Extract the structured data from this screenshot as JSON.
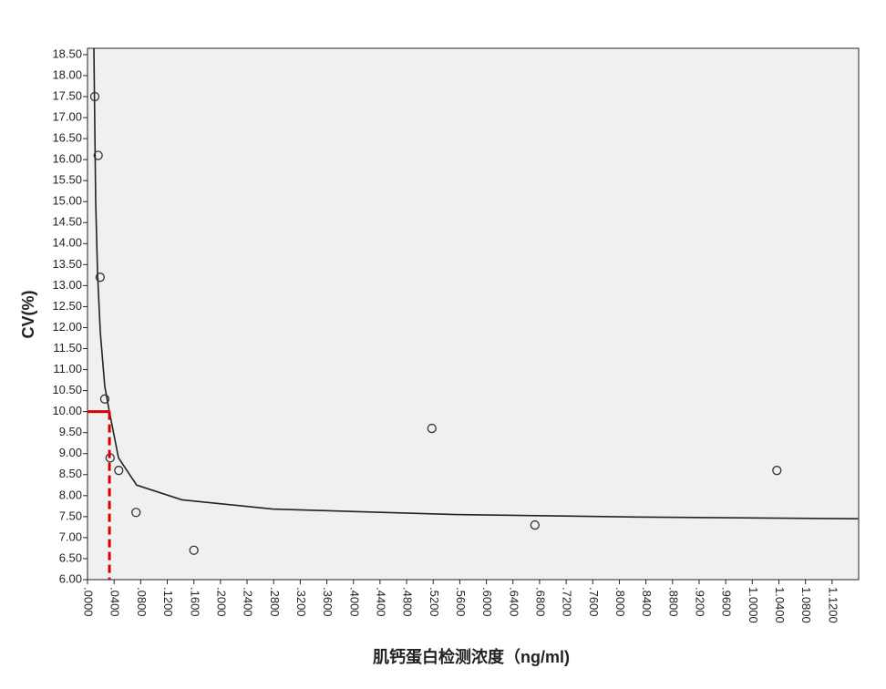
{
  "chart_data": {
    "type": "scatter",
    "x_label": "肌钙蛋白检测浓度（ng/ml)",
    "y_label": "CV(%)",
    "x": [
      0.011,
      0.016,
      0.019,
      0.026,
      0.034,
      0.047,
      0.073,
      0.16,
      0.518,
      0.673,
      1.037
    ],
    "values": [
      17.5,
      16.1,
      13.2,
      10.3,
      8.9,
      8.6,
      7.6,
      6.7,
      9.6,
      7.3,
      8.6
    ],
    "color": "#333333",
    "fit_curve": {
      "color": "#222222",
      "x": [
        0.0096,
        0.0123,
        0.0151,
        0.0192,
        0.026,
        0.0329,
        0.0466,
        0.074,
        0.142,
        0.279,
        0.553,
        0.827,
        1.159
      ],
      "y": [
        18.65,
        15.0,
        13.3,
        11.9,
        10.6,
        10.0,
        8.9,
        8.25,
        7.9,
        7.68,
        7.55,
        7.49,
        7.45
      ]
    },
    "reference": {
      "x": 0.033,
      "y": 10,
      "color": "#d40000"
    },
    "xlim": [
      0,
      1.16
    ],
    "ylim": [
      6,
      18.65
    ],
    "xticks": [
      {
        "value": 0,
        "label": ".0000"
      },
      {
        "value": 0.04,
        "label": ".0400"
      },
      {
        "value": 0.08,
        "label": ".0800"
      },
      {
        "value": 0.12,
        "label": ".1200"
      },
      {
        "value": 0.16,
        "label": ".1600"
      },
      {
        "value": 0.2,
        "label": ".2000"
      },
      {
        "value": 0.24,
        "label": ".2400"
      },
      {
        "value": 0.28,
        "label": ".2800"
      },
      {
        "value": 0.32,
        "label": ".3200"
      },
      {
        "value": 0.36,
        "label": ".3600"
      },
      {
        "value": 0.4,
        "label": ".4000"
      },
      {
        "value": 0.44,
        "label": ".4400"
      },
      {
        "value": 0.48,
        "label": ".4800"
      },
      {
        "value": 0.52,
        "label": ".5200"
      },
      {
        "value": 0.56,
        "label": ".5600"
      },
      {
        "value": 0.6,
        "label": ".6000"
      },
      {
        "value": 0.64,
        "label": ".6400"
      },
      {
        "value": 0.68,
        "label": ".6800"
      },
      {
        "value": 0.72,
        "label": ".7200"
      },
      {
        "value": 0.76,
        "label": ".7600"
      },
      {
        "value": 0.8,
        "label": ".8000"
      },
      {
        "value": 0.84,
        "label": ".8400"
      },
      {
        "value": 0.88,
        "label": ".8800"
      },
      {
        "value": 0.92,
        "label": ".9200"
      },
      {
        "value": 0.96,
        "label": ".9600"
      },
      {
        "value": 1.0,
        "label": "1.0000"
      },
      {
        "value": 1.04,
        "label": "1.0400"
      },
      {
        "value": 1.08,
        "label": "1.0800"
      },
      {
        "value": 1.12,
        "label": "1.1200"
      }
    ],
    "yticks": [
      {
        "value": 6,
        "label": "6.00"
      },
      {
        "value": 6.5,
        "label": "6.50"
      },
      {
        "value": 7,
        "label": "7.00"
      },
      {
        "value": 7.5,
        "label": "7.50"
      },
      {
        "value": 8,
        "label": "8.00"
      },
      {
        "value": 8.5,
        "label": "8.50"
      },
      {
        "value": 9,
        "label": "9.00"
      },
      {
        "value": 9.5,
        "label": "9.50"
      },
      {
        "value": 10,
        "label": "10.00"
      },
      {
        "value": 10.5,
        "label": "10.50"
      },
      {
        "value": 11,
        "label": "11.00"
      },
      {
        "value": 11.5,
        "label": "11.50"
      },
      {
        "value": 12,
        "label": "12.00"
      },
      {
        "value": 12.5,
        "label": "12.50"
      },
      {
        "value": 13,
        "label": "13.00"
      },
      {
        "value": 13.5,
        "label": "13.50"
      },
      {
        "value": 14,
        "label": "14.00"
      },
      {
        "value": 14.5,
        "label": "14.50"
      },
      {
        "value": 15,
        "label": "15.00"
      },
      {
        "value": 15.5,
        "label": "15.50"
      },
      {
        "value": 16,
        "label": "16.00"
      },
      {
        "value": 16.5,
        "label": "16.50"
      },
      {
        "value": 17,
        "label": "17.00"
      },
      {
        "value": 17.5,
        "label": "17.50"
      },
      {
        "value": 18,
        "label": "18.00"
      },
      {
        "value": 18.5,
        "label": "18.50"
      }
    ]
  }
}
